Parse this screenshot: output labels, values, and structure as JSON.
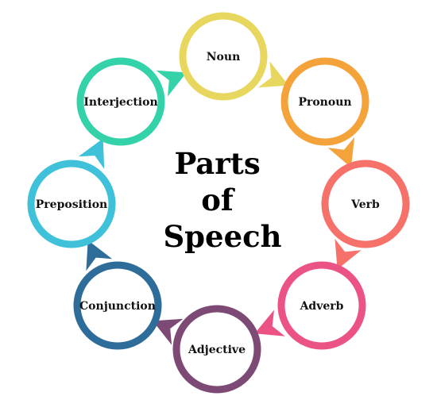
{
  "title": {
    "lines": [
      "Parts",
      "of",
      "Speech"
    ]
  },
  "nodes": [
    {
      "label": "Noun",
      "color": "#E8D75E"
    },
    {
      "label": "Pronoun",
      "color": "#F4A23A"
    },
    {
      "label": "Verb",
      "color": "#F7716B"
    },
    {
      "label": "Adverb",
      "color": "#EC5385"
    },
    {
      "label": "Adjective",
      "color": "#7D4A76"
    },
    {
      "label": "Conjunction",
      "color": "#2E6C9A"
    },
    {
      "label": "Preposition",
      "color": "#3FC1D9"
    },
    {
      "label": "Interjection",
      "color": "#34D2A9"
    }
  ]
}
